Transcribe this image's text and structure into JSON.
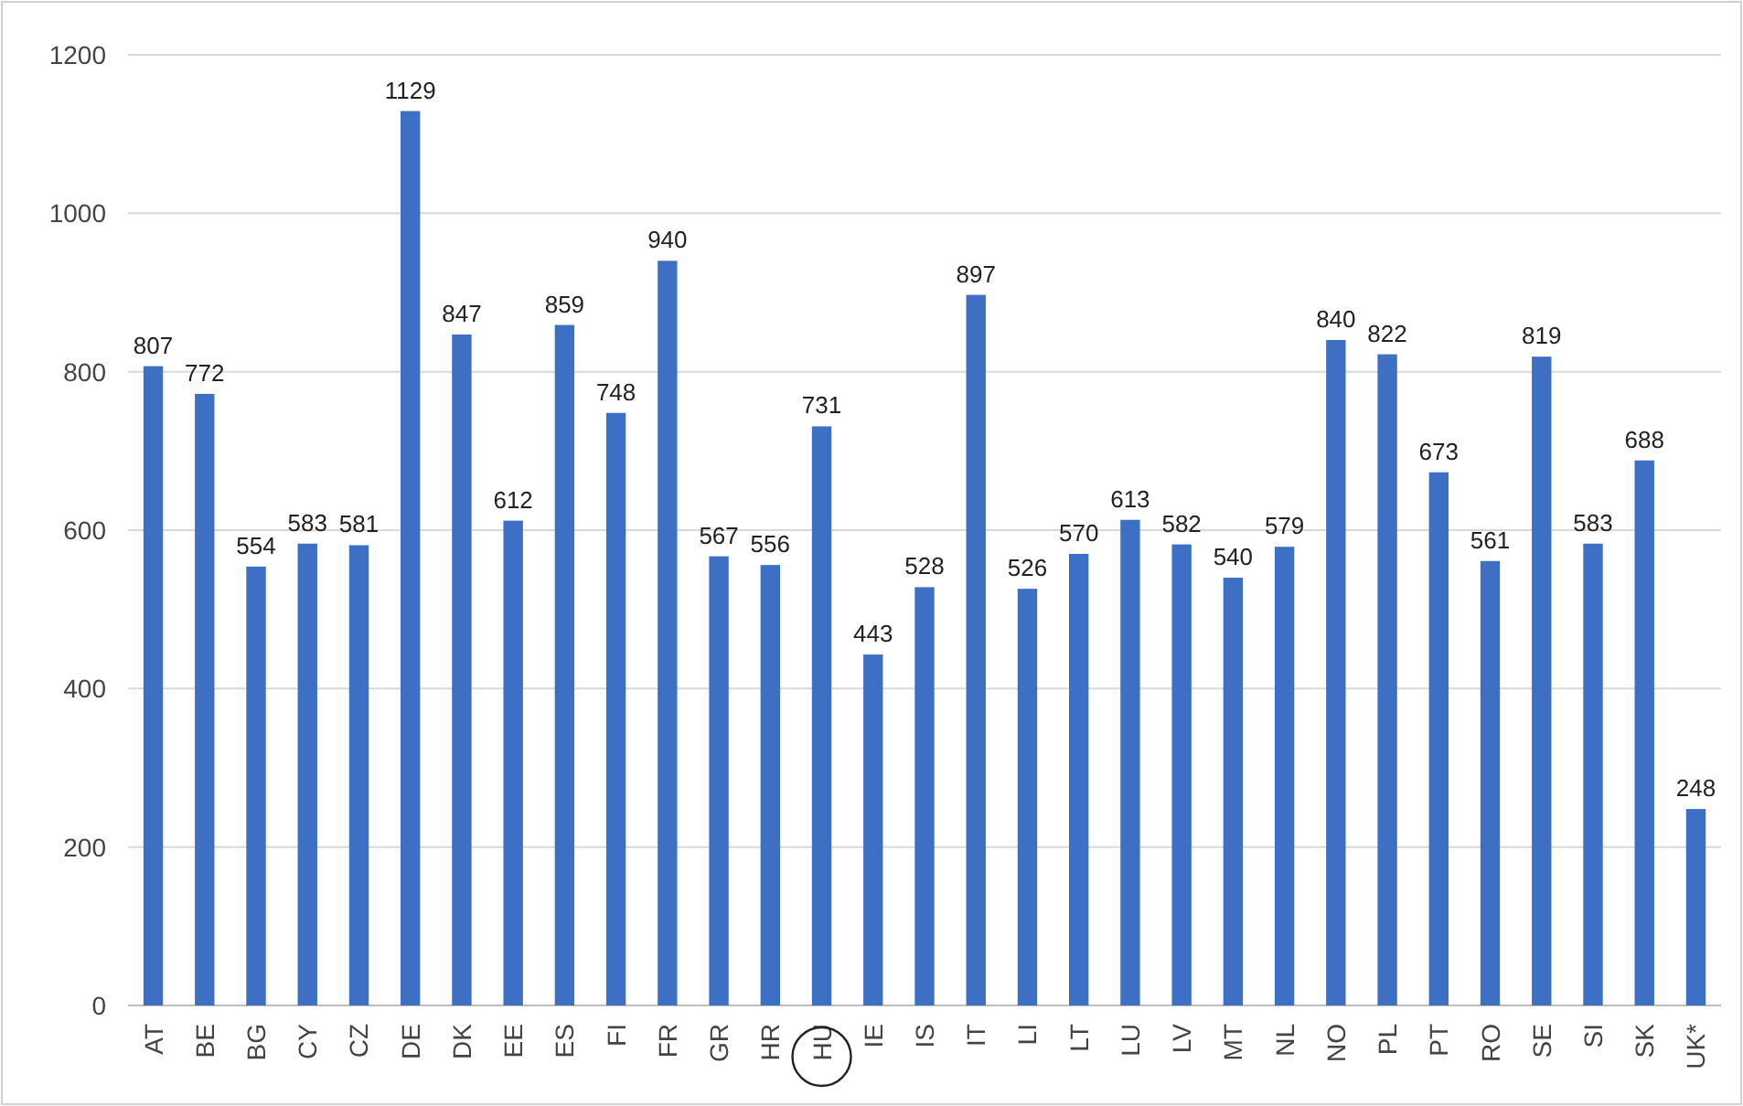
{
  "chart_data": {
    "type": "bar",
    "categories": [
      "AT",
      "BE",
      "BG",
      "CY",
      "CZ",
      "DE",
      "DK",
      "EE",
      "ES",
      "FI",
      "FR",
      "GR",
      "HR",
      "HU",
      "IE",
      "IS",
      "IT",
      "LI",
      "LT",
      "LU",
      "LV",
      "MT",
      "NL",
      "NO",
      "PL",
      "PT",
      "RO",
      "SE",
      "SI",
      "SK",
      "UK*"
    ],
    "values": [
      807,
      772,
      554,
      583,
      581,
      1129,
      847,
      612,
      859,
      748,
      940,
      567,
      556,
      731,
      443,
      528,
      897,
      526,
      570,
      613,
      582,
      540,
      579,
      840,
      822,
      673,
      561,
      819,
      583,
      688,
      248
    ],
    "color": "#3d6fc4",
    "ylim": [
      0,
      1200
    ],
    "yticks": [
      0,
      200,
      400,
      600,
      800,
      1000,
      1200
    ],
    "grid": "y",
    "data_labels": true
  }
}
